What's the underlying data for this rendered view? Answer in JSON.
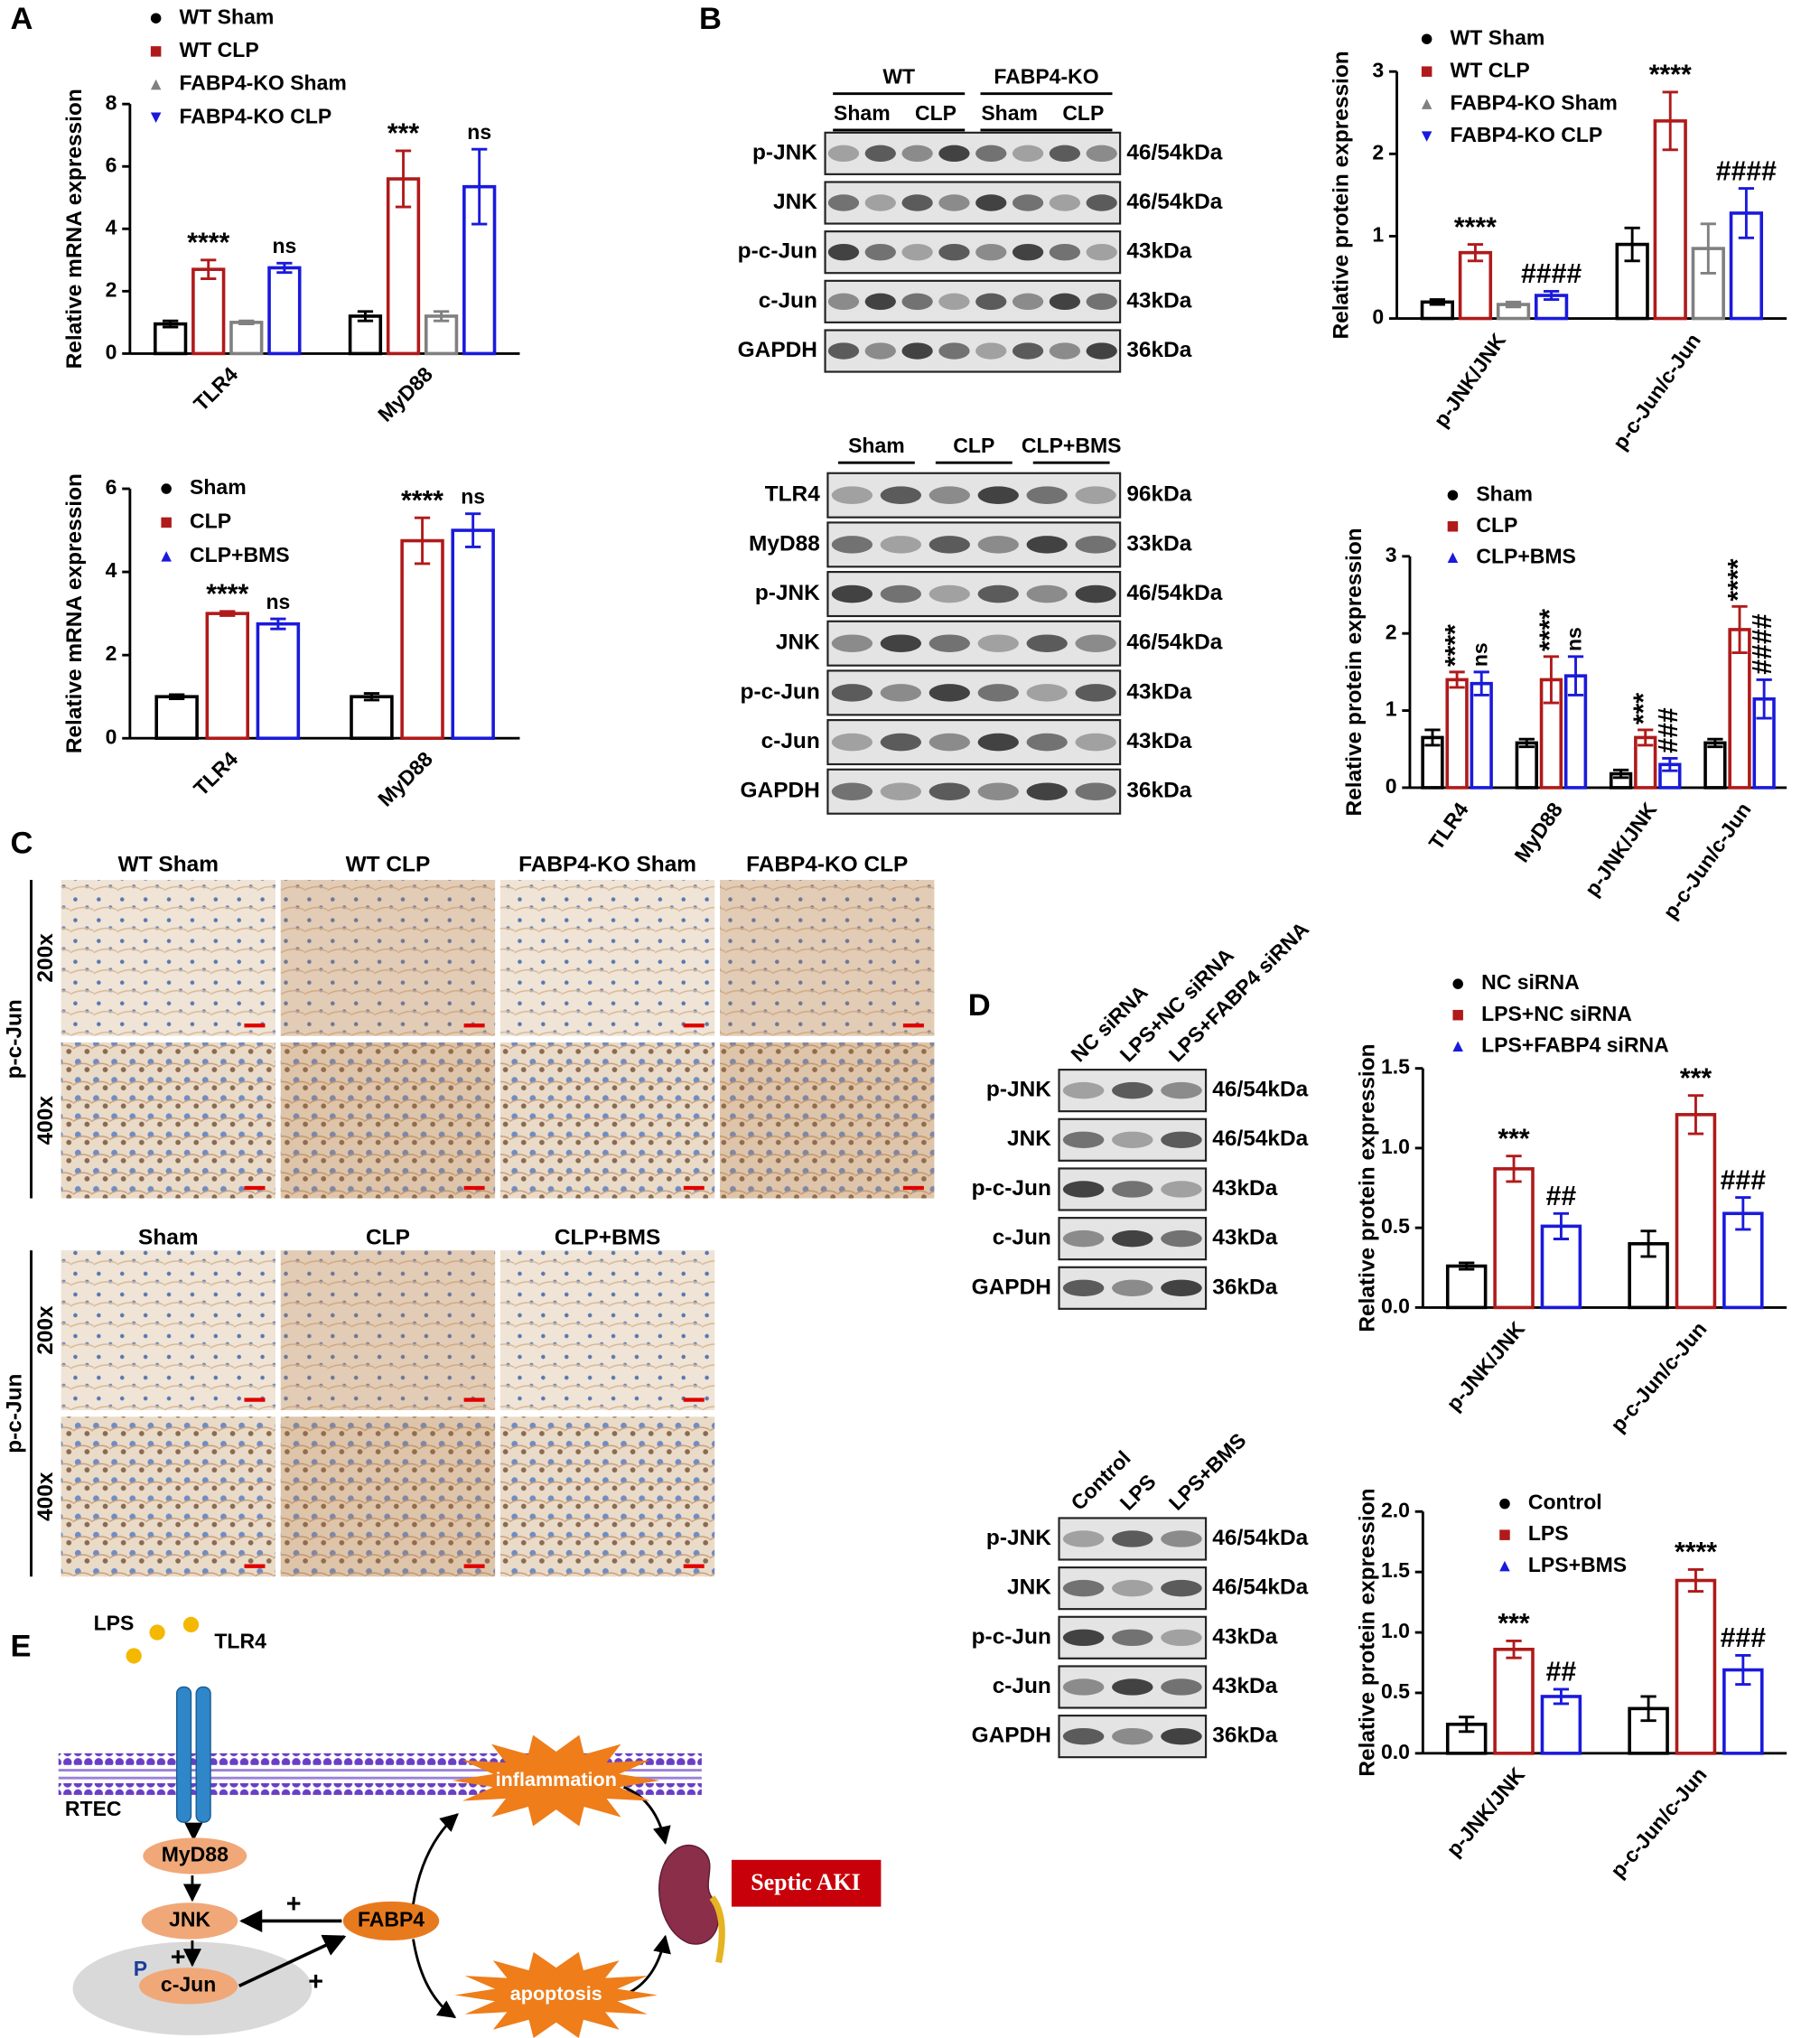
{
  "panel_labels": [
    "A",
    "B",
    "C",
    "D",
    "E"
  ],
  "chart_data": [
    {
      "type": "bar",
      "ylabel": "Relative mRNA expression",
      "categories": [
        "TLR4",
        "MyD88"
      ],
      "ylim": [
        0,
        8
      ],
      "yticks": [
        0,
        2,
        4,
        6,
        8
      ],
      "series": [
        {
          "name": "WT Sham",
          "color": "#000000",
          "marker": "circle",
          "values": [
            0.95,
            1.2
          ],
          "errors": [
            0.1,
            0.15
          ]
        },
        {
          "name": "WT CLP",
          "color": "#b01a1a",
          "marker": "square",
          "values": [
            2.7,
            5.6
          ],
          "errors": [
            0.3,
            0.9
          ],
          "significance": [
            "****",
            "***"
          ]
        },
        {
          "name": "FABP4-KO Sham",
          "color": "#808080",
          "marker": "triangle",
          "values": [
            1.0,
            1.2
          ],
          "errors": [
            0.05,
            0.15
          ]
        },
        {
          "name": "FABP4-KO CLP",
          "color": "#1a1adb",
          "marker": "triangle-down",
          "values": [
            2.75,
            5.35
          ],
          "errors": [
            0.15,
            1.2
          ],
          "significance": [
            "ns",
            "ns"
          ]
        }
      ]
    },
    {
      "type": "bar",
      "ylabel": "Relative mRNA expression",
      "categories": [
        "TLR4",
        "MyD88"
      ],
      "ylim": [
        0,
        6
      ],
      "yticks": [
        0,
        2,
        4,
        6
      ],
      "series": [
        {
          "name": "Sham",
          "color": "#000000",
          "marker": "circle",
          "values": [
            1.0,
            1.0
          ],
          "errors": [
            0.05,
            0.08
          ]
        },
        {
          "name": "CLP",
          "color": "#b01a1a",
          "marker": "square",
          "values": [
            3.0,
            4.75
          ],
          "errors": [
            0.05,
            0.55
          ],
          "significance": [
            "****",
            "****"
          ]
        },
        {
          "name": "CLP+BMS",
          "color": "#1a1adb",
          "marker": "triangle",
          "values": [
            2.75,
            5.0
          ],
          "errors": [
            0.12,
            0.4
          ],
          "significance": [
            "ns",
            "ns"
          ]
        }
      ]
    },
    {
      "type": "bar",
      "ylabel": "Relative protein expression",
      "categories": [
        "p-JNK/JNK",
        "p-c-Jun/c-Jun"
      ],
      "ylim": [
        0,
        3
      ],
      "yticks": [
        0,
        1,
        2,
        3
      ],
      "series": [
        {
          "name": "WT Sham",
          "color": "#000000",
          "marker": "circle",
          "values": [
            0.2,
            0.9
          ],
          "errors": [
            0.03,
            0.2
          ]
        },
        {
          "name": "WT CLP",
          "color": "#b01a1a",
          "marker": "square",
          "values": [
            0.8,
            2.4
          ],
          "errors": [
            0.1,
            0.35
          ],
          "significance": [
            "****",
            "****"
          ]
        },
        {
          "name": "FABP4-KO Sham",
          "color": "#808080",
          "marker": "triangle",
          "values": [
            0.17,
            0.85
          ],
          "errors": [
            0.03,
            0.3
          ]
        },
        {
          "name": "FABP4-KO CLP",
          "color": "#1a1adb",
          "marker": "triangle-down",
          "values": [
            0.28,
            1.28
          ],
          "errors": [
            0.05,
            0.3
          ],
          "significance": [
            "####",
            "####"
          ]
        }
      ]
    },
    {
      "type": "bar",
      "ylabel": "Relative protein expression",
      "categories": [
        "TLR4",
        "MyD88",
        "p-JNK/JNK",
        "p-c-Jun/c-Jun"
      ],
      "ylim": [
        0,
        3
      ],
      "yticks": [
        0,
        1,
        2,
        3
      ],
      "series": [
        {
          "name": "Sham",
          "color": "#000000",
          "marker": "circle",
          "values": [
            0.65,
            0.58,
            0.18,
            0.58
          ],
          "errors": [
            0.1,
            0.05,
            0.05,
            0.05
          ]
        },
        {
          "name": "CLP",
          "color": "#b01a1a",
          "marker": "square",
          "values": [
            1.4,
            1.4,
            0.65,
            2.05
          ],
          "errors": [
            0.1,
            0.3,
            0.1,
            0.3
          ],
          "significance": [
            "****",
            "****",
            "***",
            "****"
          ]
        },
        {
          "name": "CLP+BMS",
          "color": "#1a1adb",
          "marker": "triangle",
          "values": [
            1.35,
            1.45,
            0.3,
            1.15
          ],
          "errors": [
            0.15,
            0.25,
            0.08,
            0.25
          ],
          "significance": [
            "ns",
            "ns",
            "###",
            "####"
          ]
        }
      ]
    },
    {
      "type": "bar",
      "ylabel": "Relative protein expression",
      "categories": [
        "p-JNK/JNK",
        "p-c-Jun/c-Jun"
      ],
      "ylim": [
        0,
        1.5
      ],
      "yticks": [
        {
          "value": 0,
          "label": "0.0"
        },
        0.5,
        {
          "value": 1,
          "label": "1.0"
        },
        1.5
      ],
      "series": [
        {
          "name": "NC siRNA",
          "color": "#000000",
          "marker": "circle",
          "values": [
            0.26,
            0.4
          ],
          "errors": [
            0.02,
            0.08
          ]
        },
        {
          "name": "LPS+NC siRNA",
          "color": "#b01a1a",
          "marker": "square",
          "values": [
            0.87,
            1.21
          ],
          "errors": [
            0.08,
            0.12
          ],
          "significance": [
            "***",
            "***"
          ]
        },
        {
          "name": "LPS+FABP4 siRNA",
          "color": "#1a1adb",
          "marker": "triangle",
          "values": [
            0.51,
            0.59
          ],
          "errors": [
            0.08,
            0.1
          ],
          "significance": [
            "##",
            "###"
          ]
        }
      ]
    },
    {
      "type": "bar",
      "ylabel": "Relative protein expression",
      "categories": [
        "p-JNK/JNK",
        "p-c-Jun/c-Jun"
      ],
      "ylim": [
        0,
        2
      ],
      "yticks": [
        {
          "value": 0,
          "label": "0.0"
        },
        0.5,
        {
          "value": 1,
          "label": "1.0"
        },
        1.5,
        {
          "value": 2,
          "label": "2.0"
        }
      ],
      "series": [
        {
          "name": "Control",
          "color": "#000000",
          "marker": "circle",
          "values": [
            0.24,
            0.37
          ],
          "errors": [
            0.06,
            0.1
          ]
        },
        {
          "name": "LPS",
          "color": "#b01a1a",
          "marker": "square",
          "values": [
            0.86,
            1.43
          ],
          "errors": [
            0.07,
            0.09
          ],
          "significance": [
            "***",
            "****"
          ]
        },
        {
          "name": "LPS+BMS",
          "color": "#1a1adb",
          "marker": "triangle",
          "values": [
            0.47,
            0.69
          ],
          "errors": [
            0.06,
            0.12
          ],
          "significance": [
            "##",
            "###"
          ]
        }
      ]
    }
  ],
  "blots": [
    {
      "groups": [
        {
          "name": "WT",
          "lanes": [
            "Sham",
            "CLP"
          ]
        },
        {
          "name": "FABP4-KO",
          "lanes": [
            "Sham",
            "CLP"
          ]
        }
      ],
      "rows": [
        {
          "label": "p-JNK",
          "size": "46/54kDa"
        },
        {
          "label": "JNK",
          "size": "46/54kDa"
        },
        {
          "label": "p-c-Jun",
          "size": "43kDa"
        },
        {
          "label": "c-Jun",
          "size": "43kDa"
        },
        {
          "label": "GAPDH",
          "size": "36kDa"
        }
      ]
    },
    {
      "lanes": [
        "Sham",
        "CLP",
        "CLP+BMS"
      ],
      "rows": [
        {
          "label": "TLR4",
          "size": "96kDa"
        },
        {
          "label": "MyD88",
          "size": "33kDa"
        },
        {
          "label": "p-JNK",
          "size": "46/54kDa"
        },
        {
          "label": "JNK",
          "size": "46/54kDa"
        },
        {
          "label": "p-c-Jun",
          "size": "43kDa"
        },
        {
          "label": "c-Jun",
          "size": "43kDa"
        },
        {
          "label": "GAPDH",
          "size": "36kDa"
        }
      ]
    },
    {
      "lanes": [
        "NC siRNA",
        "LPS+NC siRNA",
        "LPS+FABP4 siRNA"
      ],
      "rows": [
        {
          "label": "p-JNK",
          "size": "46/54kDa"
        },
        {
          "label": "JNK",
          "size": "46/54kDa"
        },
        {
          "label": "p-c-Jun",
          "size": "43kDa"
        },
        {
          "label": "c-Jun",
          "size": "43kDa"
        },
        {
          "label": "GAPDH",
          "size": "36kDa"
        }
      ]
    },
    {
      "lanes": [
        "Control",
        "LPS",
        "LPS+BMS"
      ],
      "rows": [
        {
          "label": "p-JNK",
          "size": "46/54kDa"
        },
        {
          "label": "JNK",
          "size": "46/54kDa"
        },
        {
          "label": "p-c-Jun",
          "size": "43kDa"
        },
        {
          "label": "c-Jun",
          "size": "43kDa"
        },
        {
          "label": "GAPDH",
          "size": "36kDa"
        }
      ]
    }
  ],
  "ihc": [
    {
      "columns": [
        "WT Sham",
        "WT CLP",
        "FABP4-KO Sham",
        "FABP4-KO CLP"
      ],
      "stain": "p-c-Jun",
      "magnifications": [
        "200x",
        "400x"
      ]
    },
    {
      "columns": [
        "Sham",
        "CLP",
        "CLP+BMS"
      ],
      "stain": "p-c-Jun",
      "magnifications": [
        "200x",
        "400x"
      ]
    }
  ],
  "diagram": {
    "lps": "LPS",
    "tlr4": "TLR4",
    "rtec": "RTEC",
    "myd88": "MyD88",
    "jnk": "JNK",
    "fabp4": "FABP4",
    "p": "P",
    "cjun": "c-Jun",
    "inflammation": "inflammation",
    "apoptosis": "apoptosis",
    "outcome": "Septic AKI",
    "plus": [
      "+",
      "+",
      "+"
    ]
  }
}
